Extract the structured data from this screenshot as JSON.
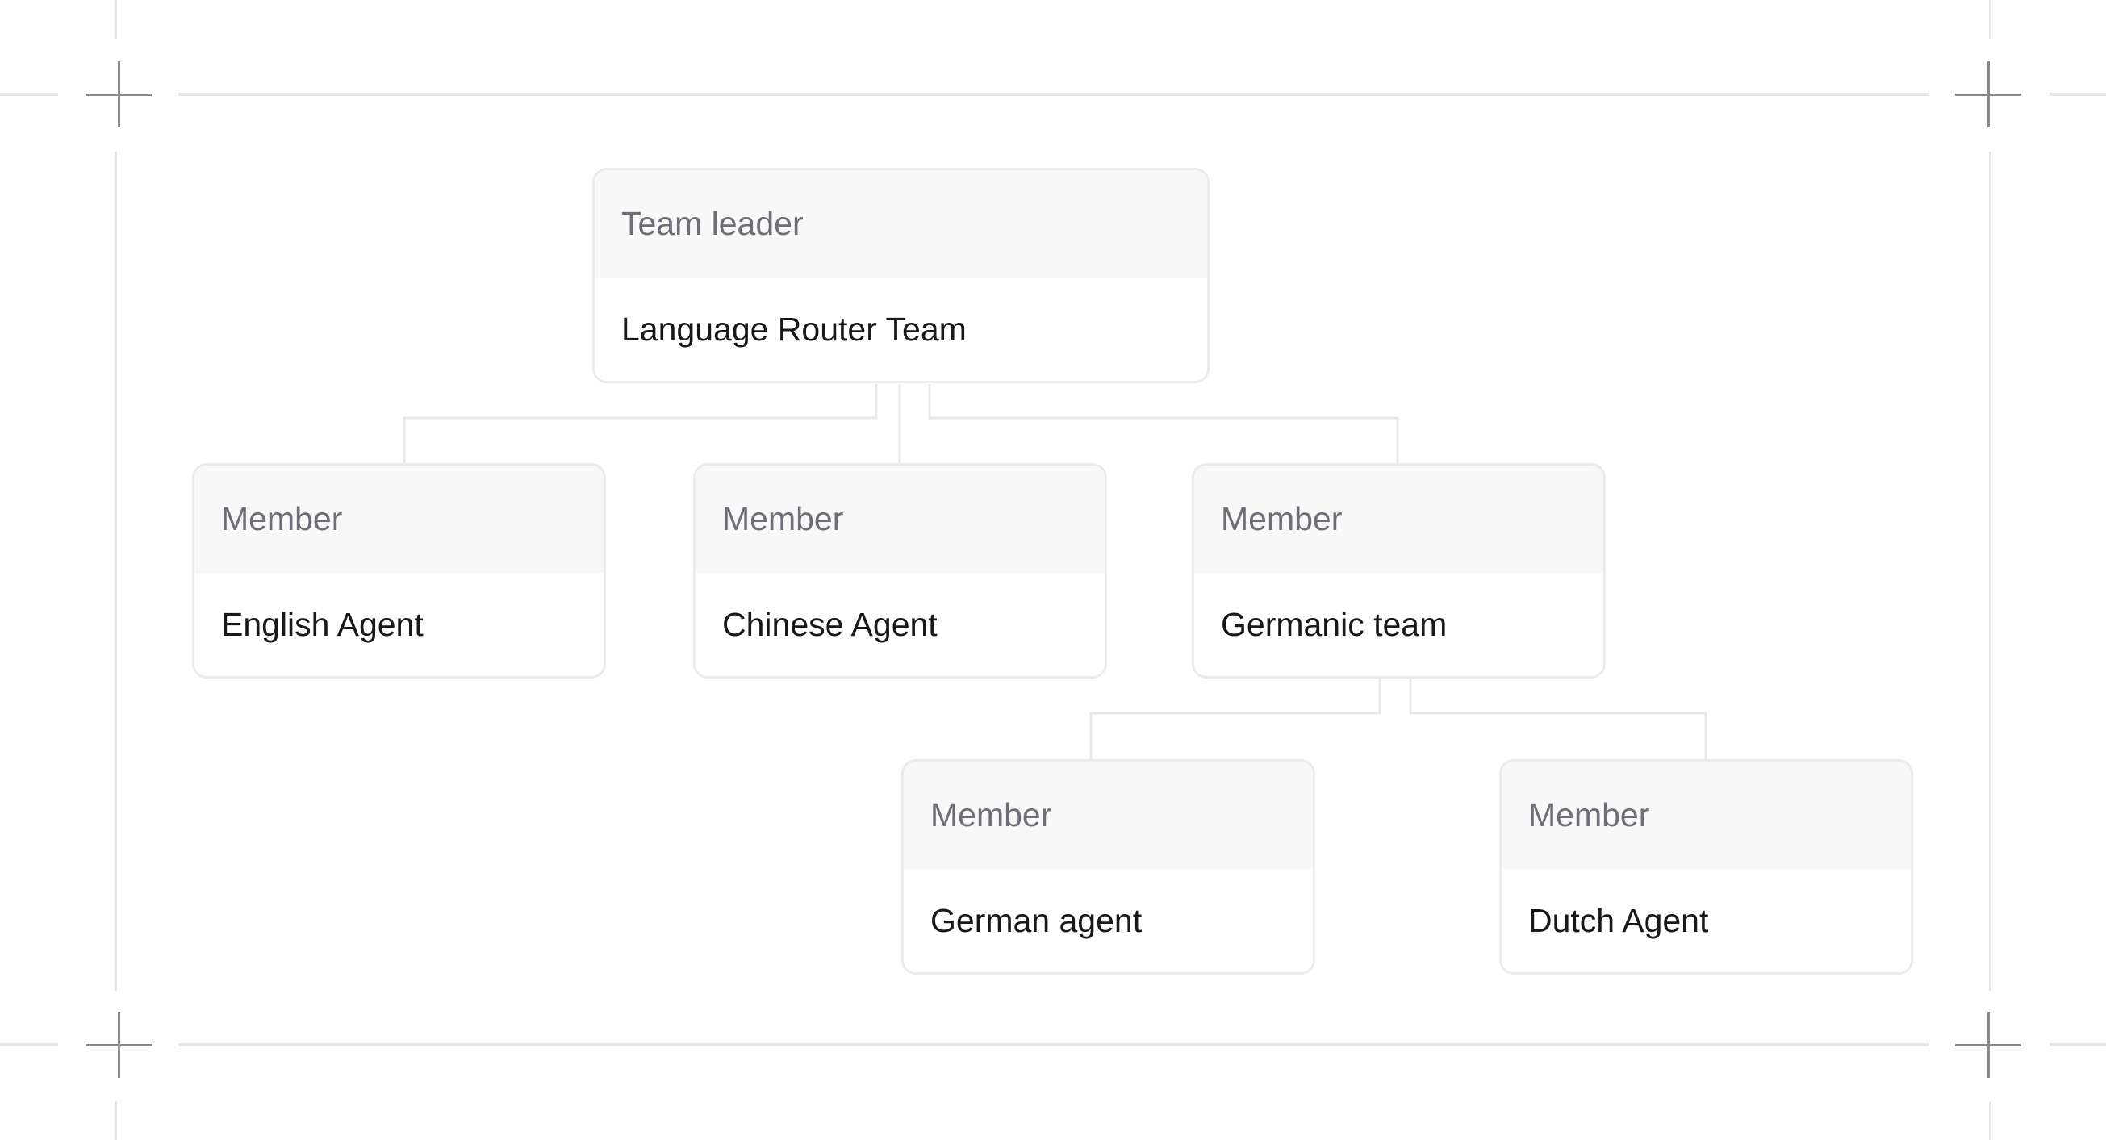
{
  "root": {
    "role": "Team leader",
    "name": "Language Router Team"
  },
  "members": [
    {
      "role": "Member",
      "name": "English Agent"
    },
    {
      "role": "Member",
      "name": "Chinese Agent"
    },
    {
      "role": "Member",
      "name": "Germanic team"
    }
  ],
  "sub_members": [
    {
      "role": "Member",
      "name": "German agent"
    },
    {
      "role": "Member",
      "name": "Dutch Agent"
    }
  ],
  "colors": {
    "border": "#ebebeb",
    "header_bg": "#f8f8f8",
    "label": "#6e6e78",
    "text": "#18181b",
    "connector": "#e8e8e8"
  }
}
